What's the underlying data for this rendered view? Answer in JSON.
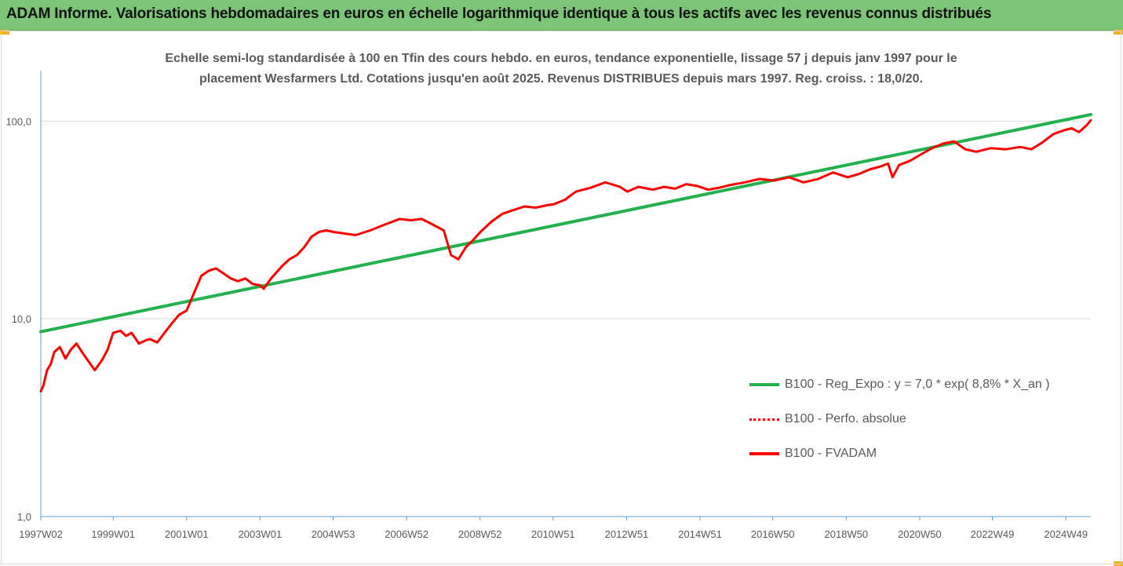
{
  "header": {
    "title": "ADAM Informe. Valorisations hebdomadaires en euros en échelle logarithmique identique à tous les actifs avec les revenus connus distribués"
  },
  "chart_data": {
    "type": "line",
    "subtitle_lines": [
      "Echelle semi-log standardisée à 100 en Tfin des cours hebdo. en euros, tendance exponentielle, lissage 57 j depuis janv 1997 pour le",
      "placement Wesfarmers Ltd. Cotations jusqu'en août 2025. Revenus DISTRIBUES depuis mars 1997. Reg. croiss. : 18,0/20."
    ],
    "y_scale": "log",
    "ylim": [
      1,
      180
    ],
    "xlim": [
      1997.03,
      2025.62
    ],
    "grid": "horizontal",
    "legend_position": "right",
    "y_ticks": [
      {
        "value": 1,
        "label": "1,0"
      },
      {
        "value": 10,
        "label": "10,0"
      },
      {
        "value": 100,
        "label": "100,0"
      }
    ],
    "x_ticks": [
      {
        "value": 1997.03,
        "label": "1997W02"
      },
      {
        "value": 1999.0,
        "label": "1999W01"
      },
      {
        "value": 2001.0,
        "label": "2001W01"
      },
      {
        "value": 2003.0,
        "label": "2003W01"
      },
      {
        "value": 2004.99,
        "label": "2004W53"
      },
      {
        "value": 2006.99,
        "label": "2006W52"
      },
      {
        "value": 2008.99,
        "label": "2008W52"
      },
      {
        "value": 2010.98,
        "label": "2010W51"
      },
      {
        "value": 2012.98,
        "label": "2012W51"
      },
      {
        "value": 2014.98,
        "label": "2014W51"
      },
      {
        "value": 2016.96,
        "label": "2016W50"
      },
      {
        "value": 2018.96,
        "label": "2018W50"
      },
      {
        "value": 2020.96,
        "label": "2020W50"
      },
      {
        "value": 2022.94,
        "label": "2022W49"
      },
      {
        "value": 2024.94,
        "label": "2024W49"
      }
    ],
    "series": [
      {
        "name": "B100 - Reg_Expo : y = 7,0 * exp( 8,8% *  X_an )",
        "color": "#22b14c",
        "style": "solid",
        "x": [
          1997.03,
          2025.62
        ],
        "y": [
          8.6,
          108
        ]
      },
      {
        "name": "B100 - Perfo. absolue",
        "color": "#ff0000",
        "style": "dotted",
        "x": [],
        "y": []
      },
      {
        "name": "B100 - FVADAM",
        "color": "#ff0000",
        "style": "solid",
        "x": [
          1997.03,
          1997.1,
          1997.2,
          1997.3,
          1997.4,
          1997.55,
          1997.7,
          1997.85,
          1998.0,
          1998.15,
          1998.3,
          1998.5,
          1998.7,
          1998.85,
          1999.0,
          1999.2,
          1999.35,
          1999.5,
          1999.7,
          1999.9,
          2000.0,
          2000.2,
          2000.4,
          2000.6,
          2000.8,
          2001.0,
          2001.2,
          2001.4,
          2001.6,
          2001.8,
          2002.0,
          2002.2,
          2002.4,
          2002.6,
          2002.8,
          2003.0,
          2003.1,
          2003.3,
          2003.6,
          2003.8,
          2004.0,
          2004.2,
          2004.4,
          2004.6,
          2004.8,
          2005.0,
          2005.3,
          2005.6,
          2006.0,
          2006.4,
          2006.8,
          2007.1,
          2007.4,
          2007.7,
          2008.0,
          2008.2,
          2008.4,
          2008.6,
          2008.8,
          2009.0,
          2009.3,
          2009.6,
          2009.9,
          2010.2,
          2010.5,
          2010.8,
          2011.0,
          2011.3,
          2011.6,
          2012.0,
          2012.4,
          2012.8,
          2013.0,
          2013.3,
          2013.7,
          2014.0,
          2014.3,
          2014.6,
          2014.9,
          2015.2,
          2015.5,
          2015.8,
          2016.2,
          2016.6,
          2017.0,
          2017.4,
          2017.8,
          2018.2,
          2018.6,
          2019.0,
          2019.3,
          2019.6,
          2019.9,
          2020.1,
          2020.22,
          2020.4,
          2020.7,
          2021.0,
          2021.3,
          2021.6,
          2021.9,
          2022.2,
          2022.5,
          2022.9,
          2023.3,
          2023.7,
          2024.0,
          2024.3,
          2024.6,
          2024.9,
          2025.1,
          2025.3,
          2025.5,
          2025.62
        ],
        "y": [
          4.3,
          4.6,
          5.5,
          5.9,
          6.8,
          7.2,
          6.3,
          7.0,
          7.5,
          6.8,
          6.2,
          5.5,
          6.2,
          7.0,
          8.5,
          8.7,
          8.2,
          8.5,
          7.5,
          7.8,
          7.9,
          7.6,
          8.5,
          9.5,
          10.5,
          11.0,
          13.5,
          16.5,
          17.5,
          18.0,
          17.0,
          16.0,
          15.5,
          16.0,
          15.0,
          14.8,
          14.2,
          16.0,
          18.5,
          20.0,
          21.0,
          23.0,
          26.0,
          27.5,
          28.0,
          27.5,
          27.0,
          26.5,
          28.0,
          30.0,
          32.0,
          31.5,
          32.0,
          30.0,
          28.0,
          21.0,
          20.0,
          23.0,
          25.0,
          27.5,
          31.0,
          34.0,
          35.5,
          37.0,
          36.5,
          37.5,
          38.0,
          40.0,
          44.0,
          46.0,
          49.0,
          46.5,
          44.0,
          46.5,
          45.0,
          46.5,
          45.5,
          48.0,
          47.0,
          45.0,
          46.0,
          47.5,
          49.0,
          51.0,
          50.0,
          52.0,
          49.0,
          51.0,
          55.0,
          52.0,
          54.0,
          57.0,
          59.0,
          61.0,
          52.0,
          60.0,
          63.0,
          68.0,
          73.0,
          77.0,
          79.0,
          72.0,
          70.0,
          73.0,
          72.0,
          74.0,
          72.0,
          78.0,
          86.0,
          90.0,
          92.0,
          88.0,
          95.0,
          101.0
        ]
      }
    ]
  }
}
